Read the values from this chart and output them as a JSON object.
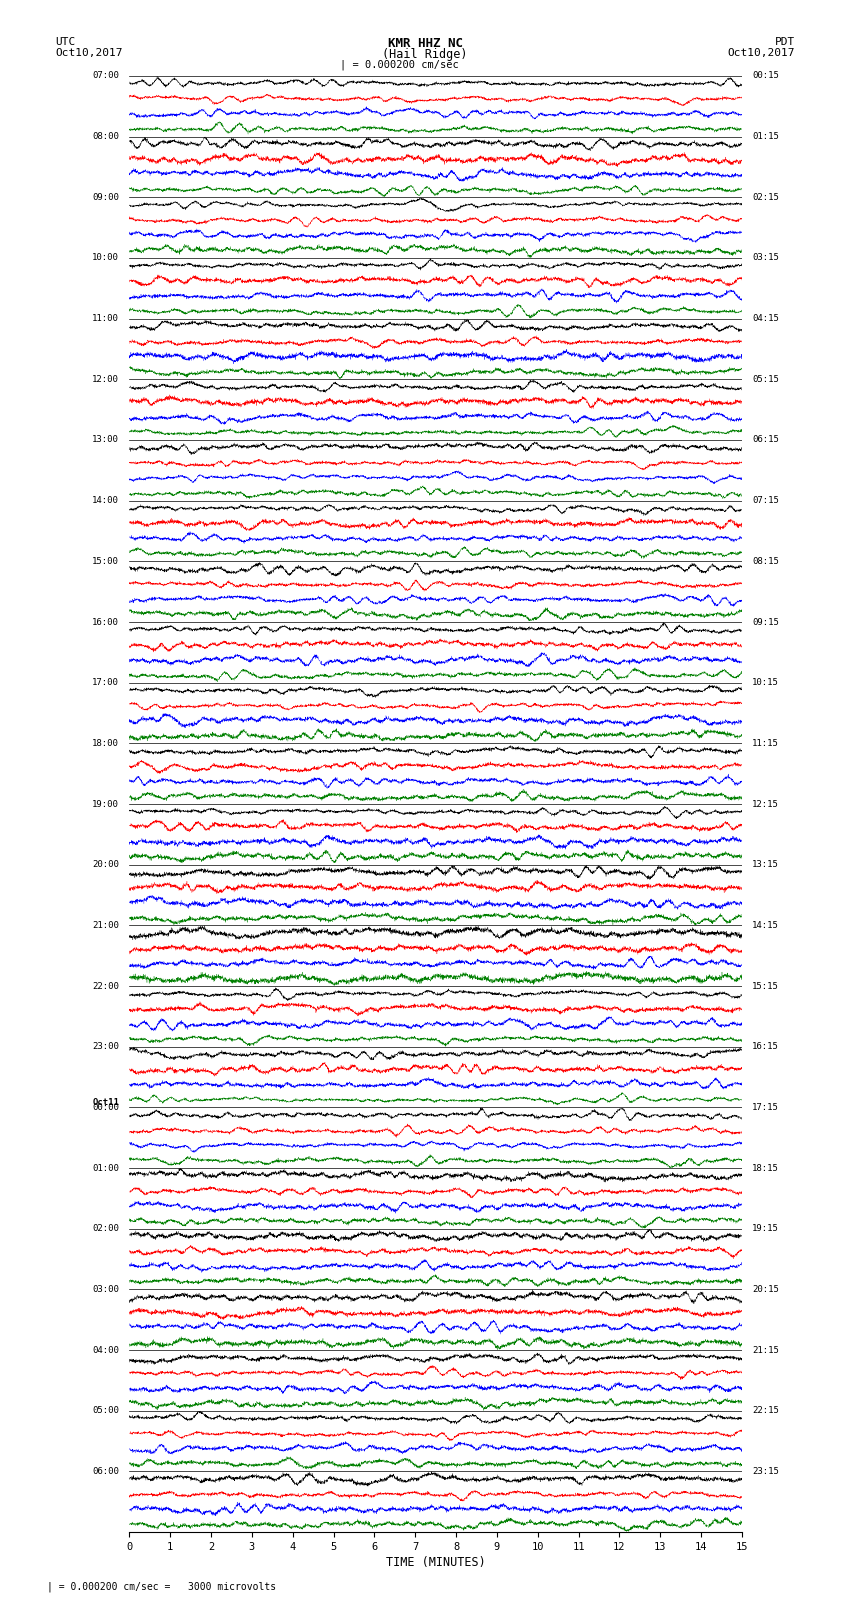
{
  "title_line1": "KMR HHZ NC",
  "title_line2": "(Hail Ridge)",
  "scale_bar": "| = 0.000200 cm/sec",
  "left_label_top": "UTC",
  "left_label_date": "Oct10,2017",
  "right_label_top": "PDT",
  "right_label_date": "Oct10,2017",
  "left_times_utc": [
    "07:00",
    "08:00",
    "09:00",
    "10:00",
    "11:00",
    "12:00",
    "13:00",
    "14:00",
    "15:00",
    "16:00",
    "17:00",
    "18:00",
    "19:00",
    "20:00",
    "21:00",
    "22:00",
    "23:00",
    "Oct11",
    "00:00",
    "01:00",
    "02:00",
    "03:00",
    "04:00",
    "05:00",
    "06:00"
  ],
  "right_times_pdt": [
    "00:15",
    "01:15",
    "02:15",
    "03:15",
    "04:15",
    "05:15",
    "06:15",
    "07:15",
    "08:15",
    "09:15",
    "10:15",
    "11:15",
    "12:15",
    "13:15",
    "14:15",
    "15:15",
    "16:15",
    "17:15",
    "18:15",
    "19:15",
    "20:15",
    "21:15",
    "22:15",
    "23:15"
  ],
  "xlabel": "TIME (MINUTES)",
  "scale_note": "= 0.000200 cm/sec =   3000 microvolts",
  "xlim": [
    0,
    15
  ],
  "xticks": [
    0,
    1,
    2,
    3,
    4,
    5,
    6,
    7,
    8,
    9,
    10,
    11,
    12,
    13,
    14,
    15
  ],
  "colors": [
    "black",
    "red",
    "blue",
    "green"
  ],
  "n_rows": 96,
  "n_hours": 24,
  "rows_per_hour": 4,
  "background_color": "white",
  "fig_width": 8.5,
  "fig_height": 16.13
}
